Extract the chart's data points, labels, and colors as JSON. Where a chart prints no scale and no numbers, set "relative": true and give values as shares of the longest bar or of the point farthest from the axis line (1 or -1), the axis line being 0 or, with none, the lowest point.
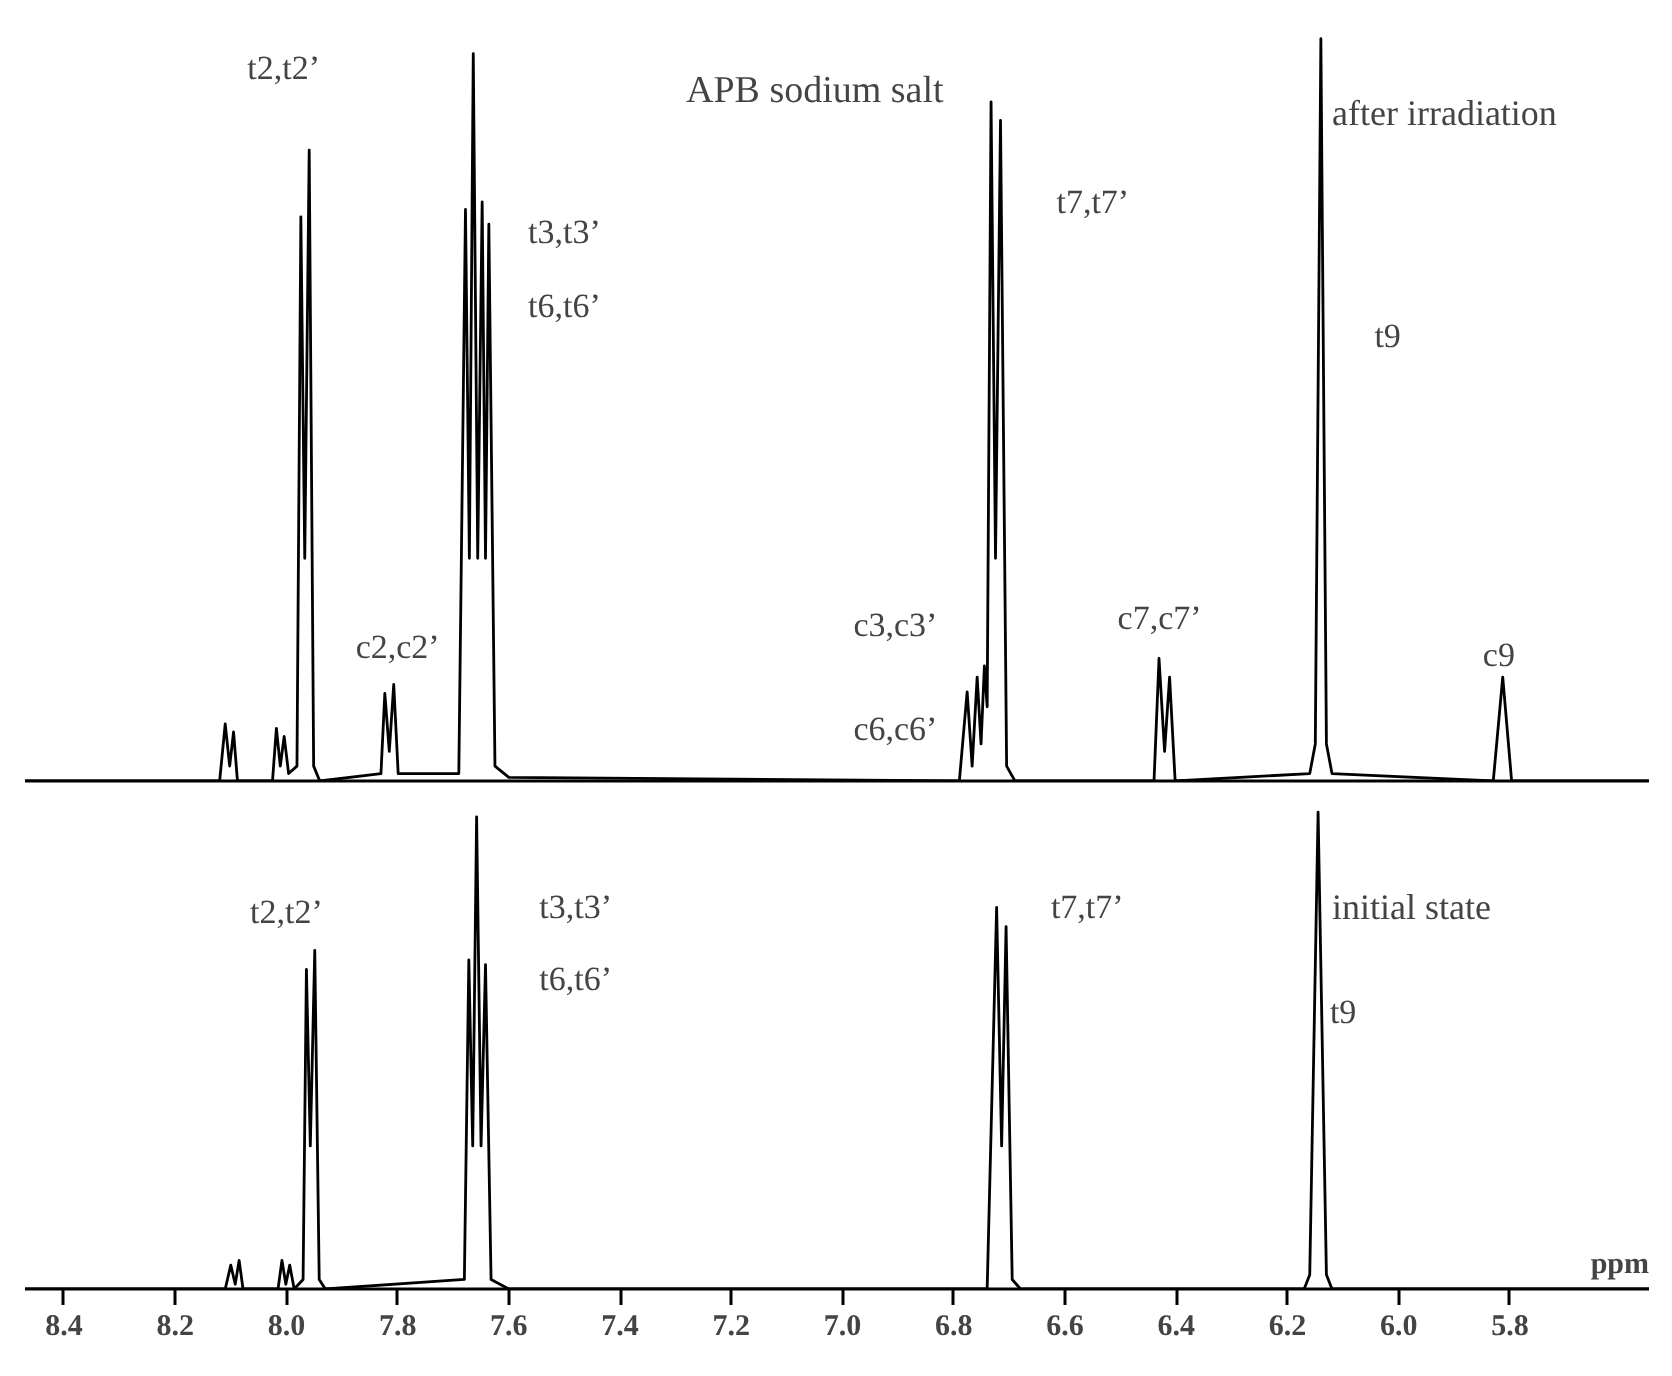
{
  "chart_data": [
    {
      "type": "line",
      "title": "APB sodium salt",
      "subtitle": "after irradiation",
      "relative": true,
      "tick_labels": false,
      "xlim": [
        8.47,
        5.55
      ],
      "xticks": [
        8.4,
        8.2,
        8.0,
        7.8,
        7.6,
        7.4,
        7.2,
        7.0,
        6.8,
        6.6,
        6.4,
        6.2,
        6.0,
        5.8
      ],
      "series": [
        {
          "color": "#000000",
          "x": [
            8.47,
            8.12,
            8.11,
            8.102,
            8.095,
            8.088,
            8.025,
            8.018,
            8.011,
            8.004,
            7.996,
            7.981,
            7.974,
            7.967,
            7.959,
            7.951,
            7.94,
            7.83,
            7.823,
            7.815,
            7.807,
            7.799,
            7.69,
            7.678,
            7.671,
            7.664,
            7.656,
            7.648,
            7.642,
            7.636,
            7.625,
            7.6,
            6.79,
            6.776,
            6.767,
            6.758,
            6.751,
            6.745,
            6.74,
            6.733,
            6.725,
            6.716,
            6.705,
            6.69,
            6.44,
            6.431,
            6.421,
            6.412,
            6.402,
            6.16,
            6.15,
            6.14,
            6.13,
            6.12,
            5.83,
            5.813,
            5.797,
            5.55
          ],
          "values": [
            0,
            0,
            0.077,
            0.02,
            0.066,
            0,
            0,
            0.071,
            0.02,
            0.06,
            0.01,
            0.02,
            0.76,
            0.3,
            0.85,
            0.02,
            0,
            0.01,
            0.118,
            0.04,
            0.13,
            0.01,
            0.01,
            0.77,
            0.3,
            0.98,
            0.3,
            0.78,
            0.3,
            0.75,
            0.02,
            0.005,
            0,
            0.12,
            0.02,
            0.14,
            0.05,
            0.155,
            0.1,
            0.915,
            0.3,
            0.89,
            0.02,
            0,
            0,
            0.165,
            0.04,
            0.14,
            0,
            0.01,
            0.05,
            1.0,
            0.05,
            0.01,
            0,
            0.14,
            0,
            0
          ]
        }
      ],
      "annotations": [
        "t2,t2’",
        "c2,c2’",
        "t3,t3’",
        "t6,t6’",
        "c3,c3’",
        "c6,c6’",
        "t7,t7’",
        "c7,c7’",
        "t9",
        "c9"
      ]
    },
    {
      "type": "line",
      "subtitle": "initial state",
      "xlabel": "ppm",
      "relative": true,
      "tick_labels": "x",
      "xlim": [
        8.47,
        5.55
      ],
      "xticks": [
        8.4,
        8.2,
        {
          "value": 8.0,
          "label": "8.0"
        },
        7.8,
        7.6,
        7.4,
        7.2,
        {
          "value": 7.0,
          "label": "7.0"
        },
        6.8,
        6.6,
        6.4,
        6.2,
        {
          "value": 6.0,
          "label": "6.0"
        },
        5.8
      ],
      "series": [
        {
          "color": "#000000",
          "x": [
            8.47,
            8.11,
            8.1,
            8.092,
            8.085,
            8.078,
            8.015,
            8.008,
            8.001,
            7.994,
            7.986,
            7.97,
            7.964,
            7.957,
            7.949,
            7.941,
            7.93,
            7.68,
            7.672,
            7.665,
            7.658,
            7.65,
            7.642,
            7.632,
            7.6,
            6.74,
            6.723,
            6.714,
            6.706,
            6.695,
            6.68,
            6.17,
            6.16,
            6.145,
            6.13,
            6.12,
            5.55
          ],
          "values": [
            0,
            0,
            0.05,
            0.01,
            0.06,
            0,
            0,
            0.06,
            0.01,
            0.05,
            0,
            0.02,
            0.67,
            0.3,
            0.71,
            0.02,
            0,
            0.02,
            0.69,
            0.3,
            0.99,
            0.3,
            0.68,
            0.02,
            0,
            0,
            0.8,
            0.3,
            0.76,
            0.02,
            0,
            0,
            0.03,
            1.0,
            0.03,
            0,
            0
          ]
        }
      ],
      "annotations": [
        "t2,t2’",
        "t3,t3’",
        "t6,t6’",
        "t7,t7’",
        "t9"
      ]
    }
  ]
}
